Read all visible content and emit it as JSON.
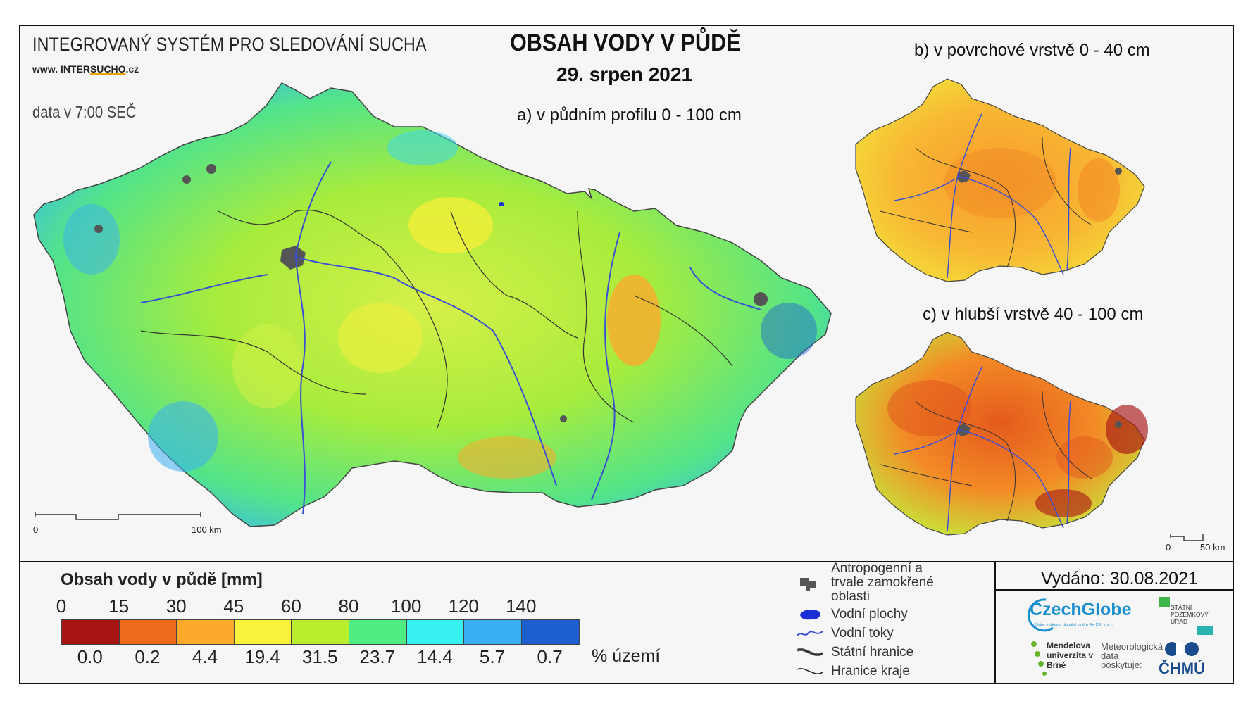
{
  "header": {
    "system_title": "INTEGROVANÝ SYSTÉM PRO SLEDOVÁNÍ SUCHA",
    "website_prefix": "www. INTER",
    "website_highlight": "SUCHO",
    "website_suffix": ".cz",
    "data_time": "data v 7:00 SEČ",
    "main_title": "OBSAH VODY V PŮDĚ",
    "date": "29. srpen 2021"
  },
  "maps": {
    "a_label": "a) v půdním profilu 0 - 100 cm",
    "b_label": "b) v povrchové vrstvě 0 - 40 cm",
    "c_label": "c) v hlubší vrstvě 40 - 100 cm",
    "scale_a": {
      "start": "0",
      "end": "100 km"
    },
    "scale_c": {
      "start": "0",
      "end": "50 km"
    }
  },
  "legend": {
    "title": "Obsah vody v půdě  [mm]",
    "thresholds": [
      "0",
      "15",
      "30",
      "45",
      "60",
      "80",
      "100",
      "120",
      "140"
    ],
    "colors": [
      "#a81414",
      "#ee6a1c",
      "#fbaa2e",
      "#faf23a",
      "#b8ee2e",
      "#4fec82",
      "#38f2f2",
      "#3aaef2",
      "#1e5fd0"
    ],
    "percent_values": [
      "0.0",
      "0.2",
      "4.4",
      "19.4",
      "31.5",
      "23.7",
      "14.4",
      "5.7",
      "0.7"
    ],
    "percent_unit": "% území"
  },
  "symbols": [
    {
      "icon": "urban-area-icon",
      "label": "Antropogenní a trvale zamokřené oblasti"
    },
    {
      "icon": "water-body-icon",
      "label": "Vodní plochy"
    },
    {
      "icon": "river-icon",
      "label": "Vodní toky"
    },
    {
      "icon": "state-border-icon",
      "label": "Státní hranice"
    },
    {
      "icon": "region-border-icon",
      "label": "Hranice kraje"
    }
  ],
  "footer": {
    "issued": "Vydáno: 30.08.2021",
    "czechglobe": "CzechGlobe",
    "czechglobe_sub": "Ústav výzkumu globální změny AV ČR, v. v. i.",
    "spu": "STÁTNÍ POZEMKOVÝ ÚŘAD",
    "mendelu": "Mendelova univerzita v Brně",
    "met_data": "Meteorologická data poskytuje:",
    "chmu": "ČHMÚ"
  }
}
